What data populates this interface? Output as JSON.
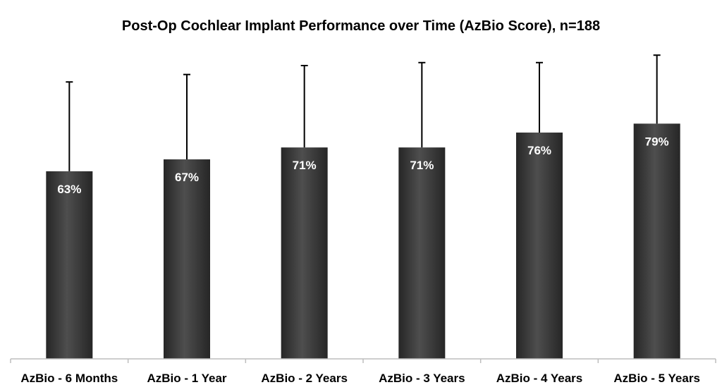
{
  "chart_data": {
    "type": "bar",
    "title": "Post-Op Cochlear Implant Performance over Time (AzBio Score), n=188",
    "categories": [
      "AzBio - 6 Months",
      "AzBio - 1 Year",
      "AzBio -  2 Years",
      "AzBio -  3 Years",
      "AzBio -  4 Years",
      "AzBio - 5 Years"
    ],
    "values": [
      63,
      67,
      71,
      71,
      76,
      79
    ],
    "error_upper": [
      93,
      95.5,
      98.5,
      99.5,
      99.5,
      102
    ],
    "value_labels": [
      "63%",
      "67%",
      "71%",
      "71%",
      "76%",
      "79%"
    ],
    "ylim": [
      0,
      103
    ],
    "yaxis_visible": false,
    "grid": false,
    "legend": "none",
    "colors": {
      "bar": "#3a3a3a",
      "bar_highlight": "#5a5a5a",
      "error_bar": "#000000",
      "label": "#ffffff"
    }
  }
}
